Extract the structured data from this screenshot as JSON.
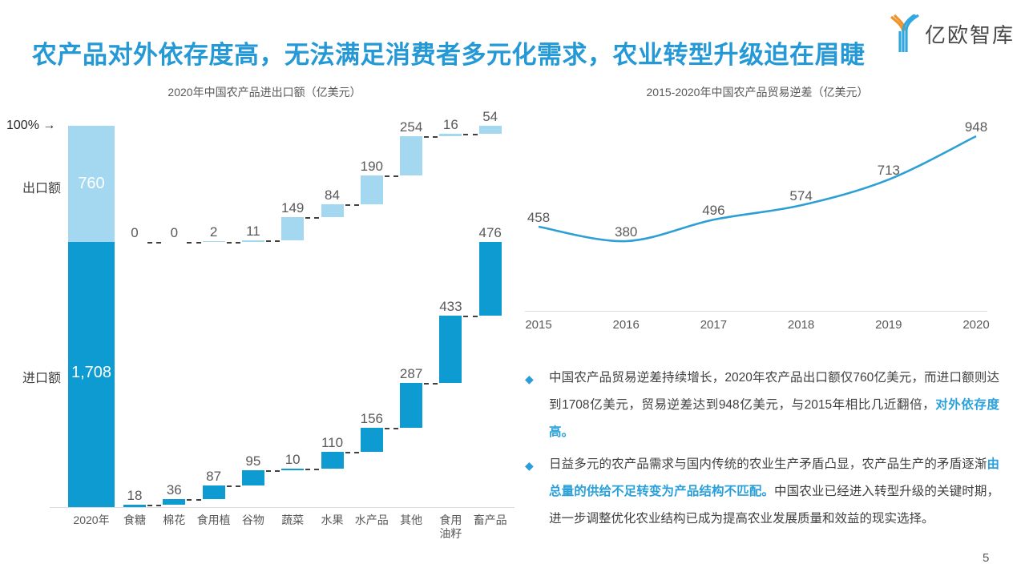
{
  "page": {
    "title": "农产品对外依存度高，无法满足消费者多元化需求，农业转型升级迫在眉睫",
    "logo_text": "亿欧智库",
    "page_number": "5"
  },
  "colors": {
    "title_blue": "#2499d6",
    "export_light_blue": "#a3d8f0",
    "import_dark_blue": "#0d9bd2",
    "line_blue": "#2d9fd5",
    "highlight_blue": "#2aa0da",
    "text_dark": "#404040",
    "text_gray": "#595959",
    "axis_gray": "#dcdcdc"
  },
  "left_chart": {
    "axis_label": "100% →",
    "export_label": "出口额",
    "import_label": "进口额",
    "export_total_text": "760",
    "import_total_text": "1,708"
  },
  "chart_data": [
    {
      "type": "bar",
      "subtype": "stacked-total-with-waterfall",
      "title": "2020年中国农产品进出口额（亿美元）",
      "total_category": "2020年",
      "total_export": 760,
      "total_import": 1708,
      "categories": [
        "食糖",
        "棉花",
        "食用植",
        "谷物",
        "蔬菜",
        "水果",
        "水产品",
        "其他",
        "食用油籽",
        "畜产品"
      ],
      "series": [
        {
          "name": "出口额",
          "values": [
            0,
            0,
            2,
            11,
            149,
            84,
            190,
            254,
            16,
            54
          ]
        },
        {
          "name": "进口额",
          "values": [
            18,
            36,
            87,
            95,
            10,
            110,
            156,
            287,
            433,
            476
          ]
        }
      ],
      "legend_position": "left",
      "grid": false
    },
    {
      "type": "line",
      "title": "2015-2020年中国农产品贸易逆差（亿美元）",
      "categories": [
        "2015",
        "2016",
        "2017",
        "2018",
        "2019",
        "2020"
      ],
      "values": [
        458,
        380,
        496,
        574,
        713,
        948
      ],
      "ylim": [
        330,
        1000
      ],
      "grid": false,
      "smooth": true
    }
  ],
  "bullets": [
    {
      "pre": "中国农产品贸易逆差持续增长，2020年农产品出口额仅760亿美元，而进口额则达到1708亿美元，贸易逆差达到948亿美元，与2015年相比几近翻倍，",
      "highlight": "对外依存度高。",
      "post": ""
    },
    {
      "pre": "日益多元的农产品需求与国内传统的农业生产矛盾凸显，农产品生产的矛盾逐渐",
      "highlight": "由总量的供给不足转变为产品结构不匹配。",
      "post": "中国农业已经进入转型升级的关键时期，进一步调整优化农业结构已成为提高农业发展质量和效益的现实选择。"
    }
  ]
}
